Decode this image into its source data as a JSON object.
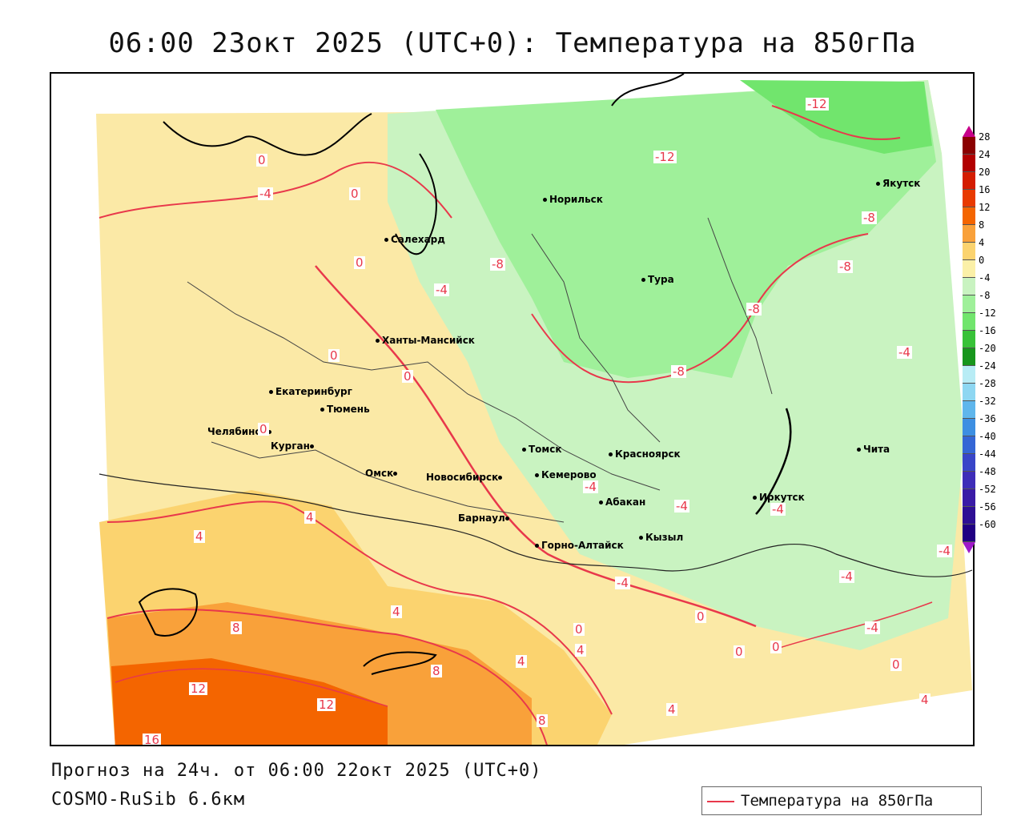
{
  "title": "06:00 23окт 2025 (UTC+0): Температура на 850гПа",
  "footer": {
    "forecast": "Прогноз на 24ч. от 06:00 22окт 2025 (UTC+0)",
    "model": "COSMO-RuSib 6.6км"
  },
  "legend": {
    "label": "Температура на 850гПа",
    "line_color": "#e8384b"
  },
  "cities": [
    {
      "name": "Норильск"
    },
    {
      "name": "Якутск"
    },
    {
      "name": "Салехард"
    },
    {
      "name": "Тура"
    },
    {
      "name": "Ханты-Мансийск"
    },
    {
      "name": "Екатеринбург"
    },
    {
      "name": "Тюмень"
    },
    {
      "name": "Челябинск"
    },
    {
      "name": "Курган"
    },
    {
      "name": "Омск"
    },
    {
      "name": "Новосибирск"
    },
    {
      "name": "Томск"
    },
    {
      "name": "Кемерово"
    },
    {
      "name": "Красноярск"
    },
    {
      "name": "Барнаул"
    },
    {
      "name": "Абакан"
    },
    {
      "name": "Иркутск"
    },
    {
      "name": "Чита"
    },
    {
      "name": "Горно-Алтайск"
    },
    {
      "name": "Кызыл"
    }
  ],
  "contour_labels": [
    "-12",
    "-12",
    "0",
    "-4",
    "0",
    "0",
    "-8",
    "-8",
    "-8",
    "-4",
    "0",
    "0",
    "-8",
    "-8",
    "-4",
    "0",
    "-4",
    "-4",
    "-4",
    "-4",
    "4",
    "4",
    "4",
    "8",
    "8",
    "12",
    "12",
    "16",
    "8",
    "4",
    "4",
    "0",
    "0",
    "0",
    "0",
    "0",
    "4",
    "4",
    "-4",
    "-4",
    "-4"
  ],
  "colorbar": {
    "labels": [
      "28",
      "24",
      "20",
      "16",
      "12",
      "8",
      "4",
      "0",
      "-4",
      "-8",
      "-12",
      "-16",
      "-20",
      "-24",
      "-28",
      "-32",
      "-36",
      "-40",
      "-44",
      "-48",
      "-52",
      "-56",
      "-60"
    ],
    "colors": [
      "#8b0000",
      "#b20000",
      "#d41c00",
      "#e83a00",
      "#f46500",
      "#f9a13a",
      "#fbd36f",
      "#fbf0a8",
      "#c9f3c1",
      "#9ff09a",
      "#71e56d",
      "#38c238",
      "#17961c",
      "#b8ecf5",
      "#8ed7f2",
      "#5fb6ec",
      "#3d8fe2",
      "#3466d5",
      "#3845c8",
      "#3f2db8",
      "#3a1ba6",
      "#2e0f94",
      "#200082"
    ],
    "top_color": "#c8008a",
    "bottom_color": "#9f18c8"
  }
}
